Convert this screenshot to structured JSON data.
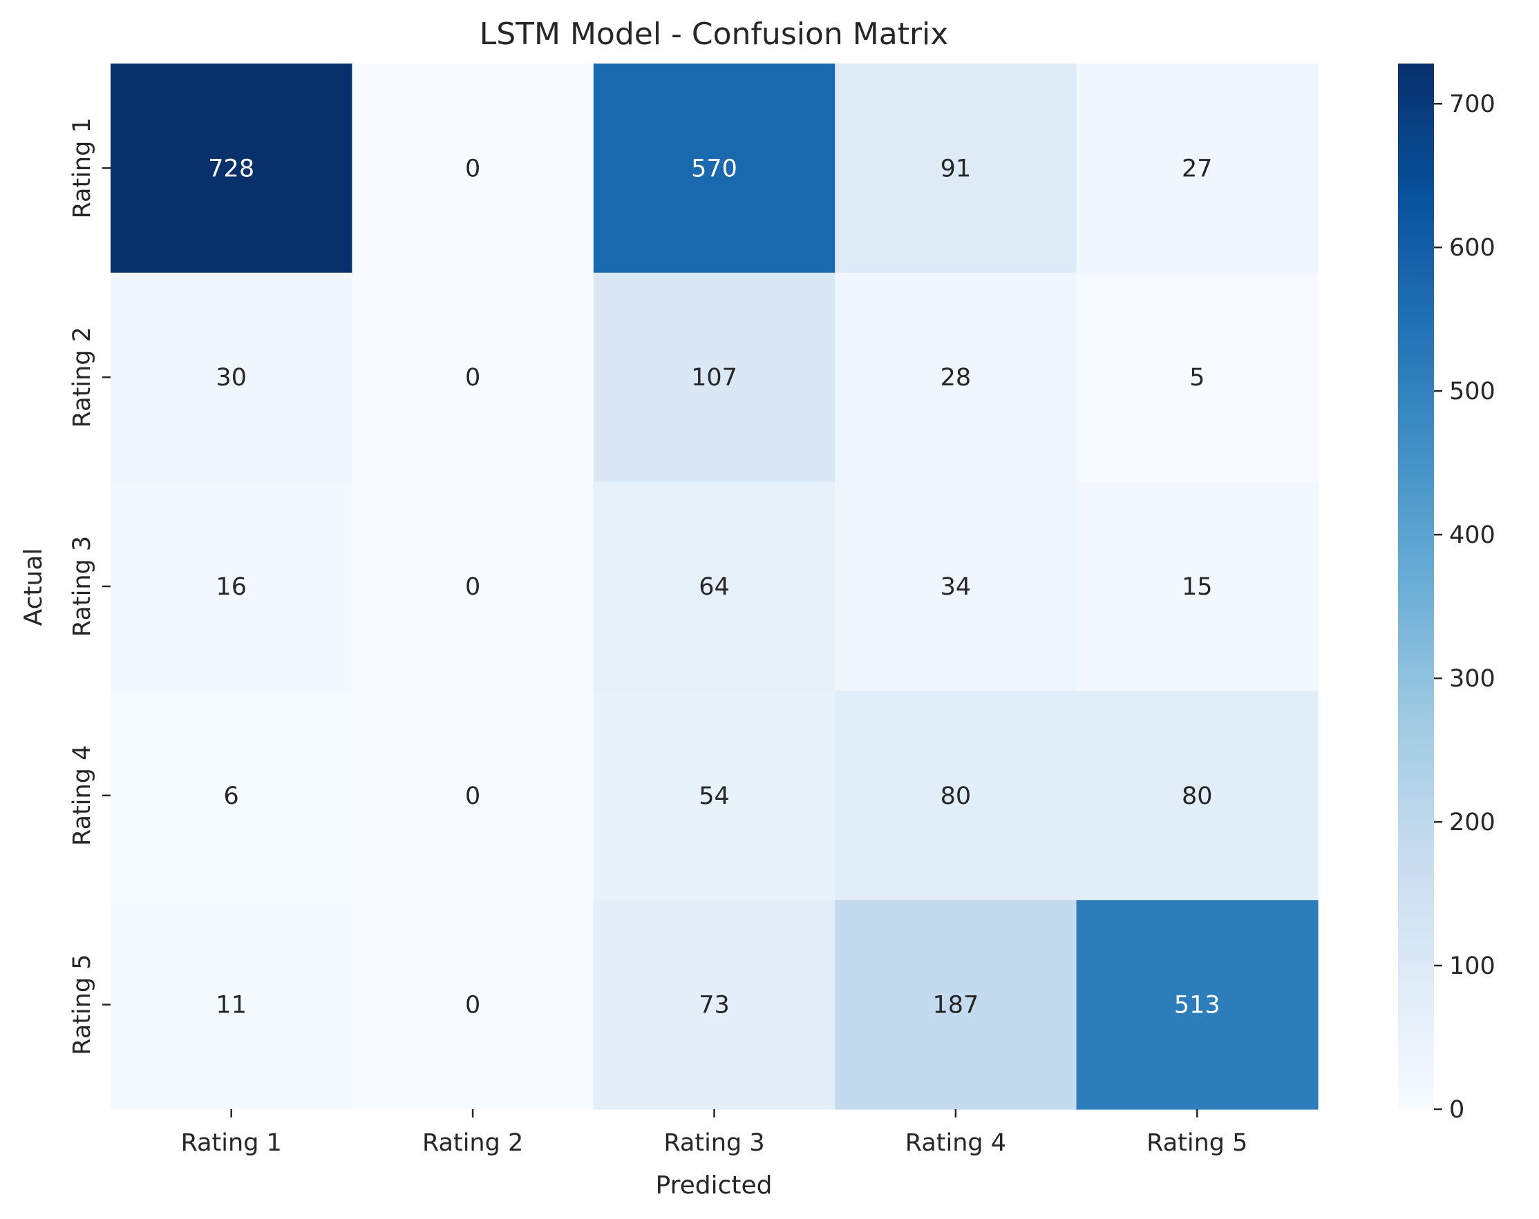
{
  "chart_data": {
    "type": "heatmap",
    "title": "LSTM Model - Confusion Matrix",
    "xlabel": "Predicted",
    "ylabel": "Actual",
    "x_categories": [
      "Rating 1",
      "Rating 2",
      "Rating 3",
      "Rating 4",
      "Rating 5"
    ],
    "y_categories": [
      "Rating 1",
      "Rating 2",
      "Rating 3",
      "Rating 4",
      "Rating 5"
    ],
    "values": [
      [
        728,
        0,
        570,
        91,
        27
      ],
      [
        30,
        0,
        107,
        28,
        5
      ],
      [
        16,
        0,
        64,
        34,
        15
      ],
      [
        6,
        0,
        54,
        80,
        80
      ],
      [
        11,
        0,
        73,
        187,
        513
      ]
    ],
    "colormap": "Blues",
    "colorbar": {
      "range": [
        0,
        728
      ],
      "ticks": [
        0,
        100,
        200,
        300,
        400,
        500,
        600,
        700
      ]
    },
    "annotation_colors": {
      "light": "#ffffff",
      "dark": "#262626"
    }
  }
}
